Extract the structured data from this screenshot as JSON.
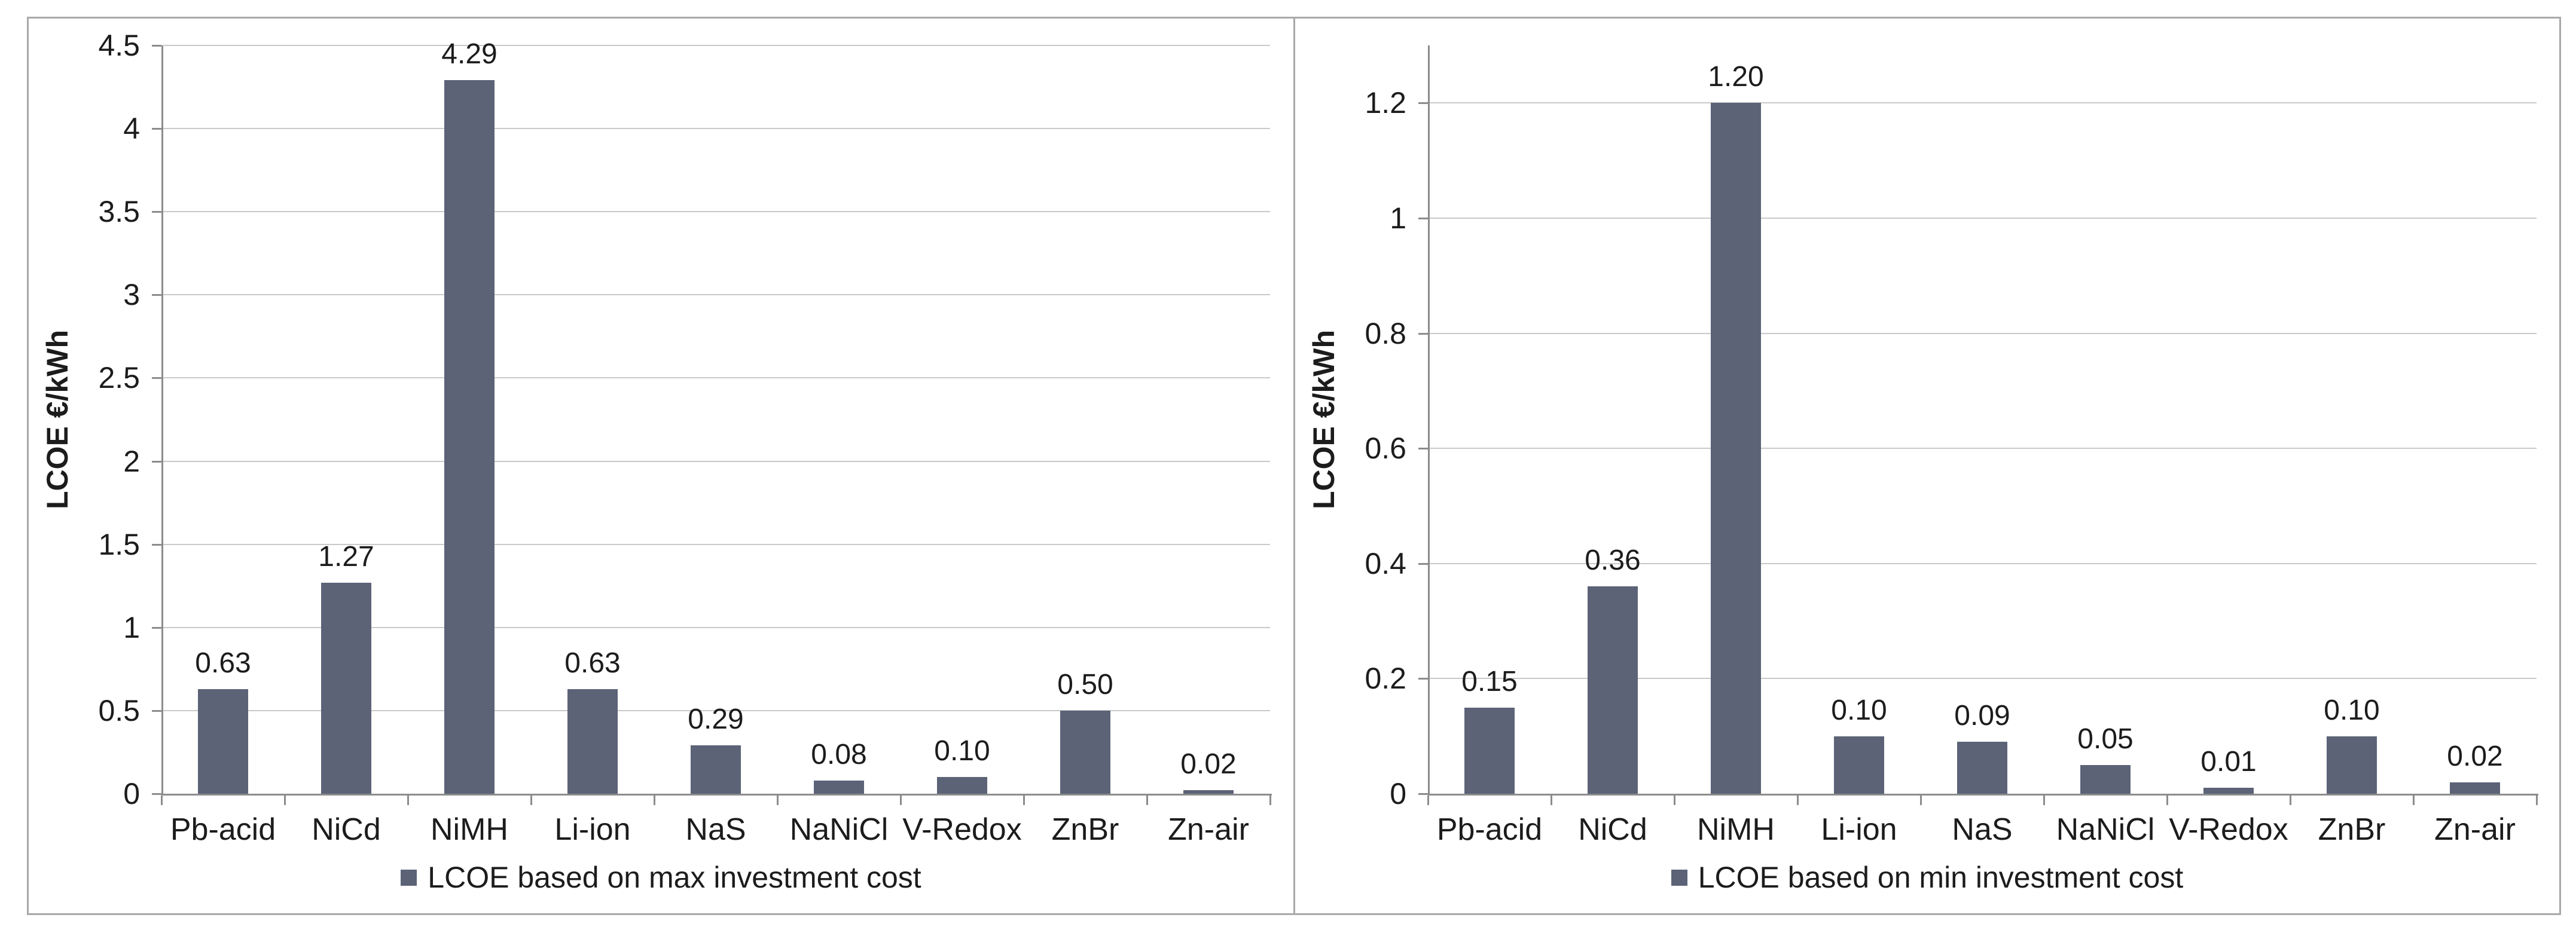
{
  "figure": {
    "description": "Two side-by-side bar charts of levelized cost of energy for battery storage technologies"
  },
  "colors": {
    "bar": "#5c6377",
    "gridline": "#c9c9c9",
    "axis": "#8c8c8c",
    "frame_border": "#a8a8a8"
  },
  "chart_data": [
    {
      "type": "bar",
      "title": "",
      "ylabel": "LCOE €/kWh",
      "xlabel": "",
      "categories": [
        "Pb-acid",
        "NiCd",
        "NiMH",
        "Li-ion",
        "NaS",
        "NaNiCl",
        "V-Redox",
        "ZnBr",
        "Zn-air"
      ],
      "values": [
        0.63,
        1.27,
        4.29,
        0.63,
        0.29,
        0.08,
        0.1,
        0.5,
        0.02
      ],
      "value_labels": [
        "0.63",
        "1.27",
        "4.29",
        "0.63",
        "0.29",
        "0.08",
        "0.10",
        "0.50",
        "0.02"
      ],
      "ylim": [
        0,
        4.5
      ],
      "yticks": [
        0,
        0.5,
        1,
        1.5,
        2,
        2.5,
        3,
        3.5,
        4,
        4.5
      ],
      "ytick_labels": [
        "0",
        "0.5",
        "1",
        "1.5",
        "2",
        "2.5",
        "3",
        "3.5",
        "4",
        "4.5"
      ],
      "grid": true,
      "legend": "LCOE based on max investment cost",
      "legend_position": "bottom",
      "bar_color": "#5c6377"
    },
    {
      "type": "bar",
      "title": "",
      "ylabel": "LCOE €/kWh",
      "xlabel": "",
      "categories": [
        "Pb-acid",
        "NiCd",
        "NiMH",
        "Li-ion",
        "NaS",
        "NaNiCl",
        "V-Redox",
        "ZnBr",
        "Zn-air"
      ],
      "values": [
        0.15,
        0.36,
        1.2,
        0.1,
        0.09,
        0.05,
        0.01,
        0.1,
        0.02
      ],
      "value_labels": [
        "0.15",
        "0.36",
        "1.20",
        "0.10",
        "0.09",
        "0.05",
        "0.01",
        "0.10",
        "0.02"
      ],
      "ylim": [
        0,
        1.3
      ],
      "yticks": [
        0,
        0.2,
        0.4,
        0.6,
        0.8,
        1,
        1.2
      ],
      "ytick_labels": [
        "0",
        "0.2",
        "0.4",
        "0.6",
        "0.8",
        "1",
        "1.2"
      ],
      "grid": true,
      "legend": "LCOE based on min investment cost",
      "legend_position": "bottom",
      "bar_color": "#5c6377"
    }
  ]
}
